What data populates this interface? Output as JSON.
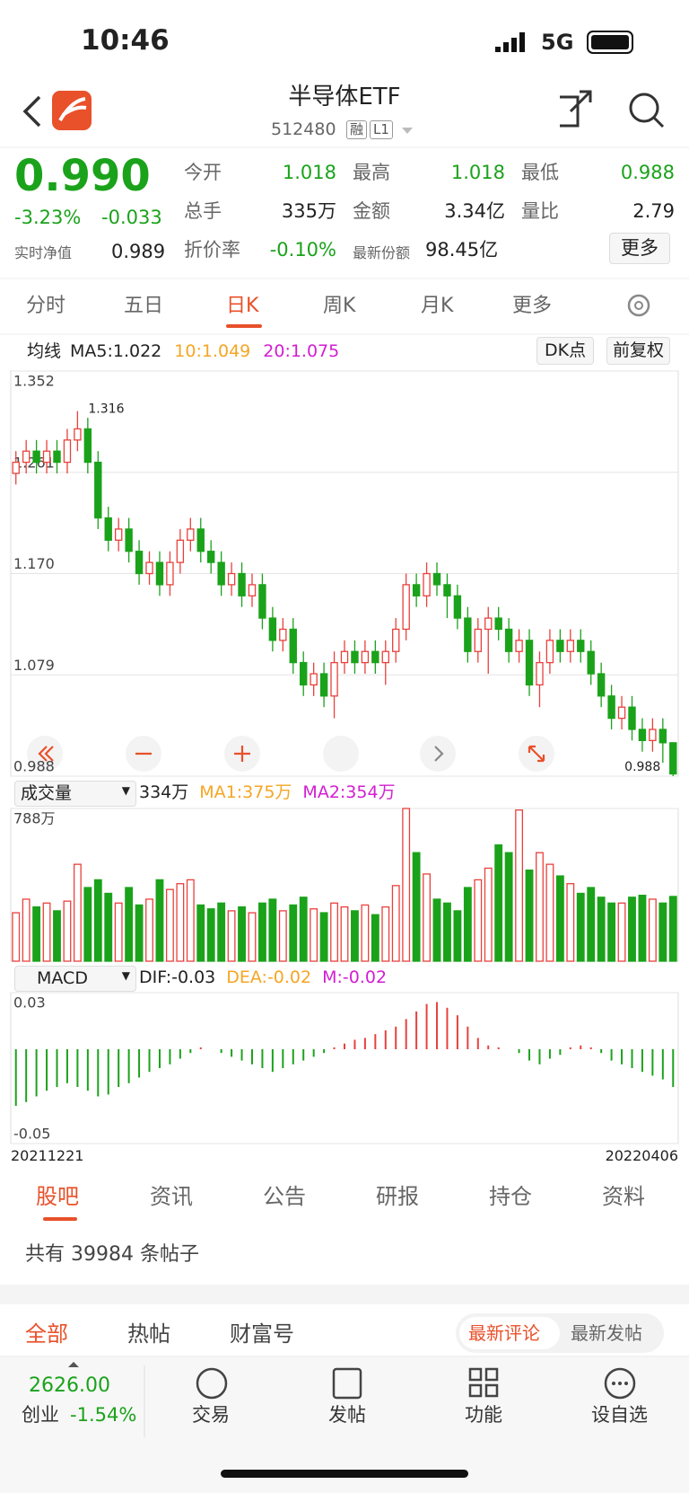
{
  "status_bar": {
    "time": "10:46",
    "network": "5G"
  },
  "header": {
    "title": "半导体ETF",
    "code": "512480",
    "tags": [
      "融",
      "L1"
    ]
  },
  "quote": {
    "price": "0.990",
    "change_pct": "-3.23%",
    "change": "-0.033",
    "nav_label": "实时净值",
    "nav": "0.989",
    "fields": [
      [
        "今开",
        "1.018"
      ],
      [
        "最高",
        "1.018"
      ],
      [
        "最低",
        "0.988"
      ],
      [
        "总手",
        "335万"
      ],
      [
        "金额",
        "3.34亿"
      ],
      [
        "量比",
        "2.79"
      ],
      [
        "折价率",
        "-0.10%"
      ],
      [
        "最新份额",
        "98.45亿"
      ]
    ],
    "more": "更多"
  },
  "period_tabs": [
    "分时",
    "五日",
    "日K",
    "周K",
    "月K",
    "更多"
  ],
  "ma_legend": {
    "label": "均线",
    "items": [
      {
        "label": "MA5:1.022",
        "color": "#222222"
      },
      {
        "label": "10:1.049",
        "color": "#f5a623"
      },
      {
        "label": "20:1.075",
        "color": "#d21ed2"
      }
    ],
    "buttons": [
      "DK点",
      "前复权"
    ]
  },
  "chart_data": [
    {
      "type": "candlestick",
      "up_color": "#e8413c",
      "down_color": "#1ba21b",
      "open": [
        1.26,
        1.27,
        1.28,
        1.27,
        1.28,
        1.27,
        1.29,
        1.3,
        1.27,
        1.22,
        1.2,
        1.21,
        1.19,
        1.17,
        1.18,
        1.16,
        1.18,
        1.2,
        1.21,
        1.19,
        1.18,
        1.16,
        1.17,
        1.15,
        1.16,
        1.13,
        1.11,
        1.12,
        1.09,
        1.07,
        1.08,
        1.06,
        1.09,
        1.1,
        1.09,
        1.1,
        1.09,
        1.1,
        1.12,
        1.16,
        1.15,
        1.17,
        1.16,
        1.15,
        1.13,
        1.1,
        1.12,
        1.13,
        1.12,
        1.1,
        1.11,
        1.07,
        1.09,
        1.11,
        1.1,
        1.11,
        1.1,
        1.08,
        1.06,
        1.04,
        1.05,
        1.03,
        1.02,
        1.03,
        1.018
      ],
      "high": [
        1.28,
        1.29,
        1.29,
        1.29,
        1.29,
        1.3,
        1.316,
        1.31,
        1.28,
        1.23,
        1.22,
        1.22,
        1.2,
        1.19,
        1.19,
        1.19,
        1.21,
        1.22,
        1.22,
        1.2,
        1.19,
        1.18,
        1.18,
        1.17,
        1.17,
        1.14,
        1.13,
        1.13,
        1.1,
        1.09,
        1.09,
        1.1,
        1.11,
        1.11,
        1.11,
        1.11,
        1.11,
        1.13,
        1.17,
        1.17,
        1.18,
        1.18,
        1.17,
        1.16,
        1.14,
        1.13,
        1.14,
        1.14,
        1.13,
        1.12,
        1.12,
        1.1,
        1.12,
        1.12,
        1.12,
        1.12,
        1.11,
        1.09,
        1.07,
        1.06,
        1.06,
        1.04,
        1.04,
        1.04,
        1.018
      ],
      "low": [
        1.25,
        1.26,
        1.26,
        1.26,
        1.26,
        1.26,
        1.28,
        1.26,
        1.21,
        1.19,
        1.19,
        1.18,
        1.16,
        1.16,
        1.15,
        1.15,
        1.17,
        1.19,
        1.18,
        1.17,
        1.15,
        1.15,
        1.14,
        1.14,
        1.12,
        1.1,
        1.1,
        1.08,
        1.06,
        1.06,
        1.05,
        1.04,
        1.08,
        1.08,
        1.08,
        1.08,
        1.07,
        1.09,
        1.11,
        1.14,
        1.14,
        1.15,
        1.13,
        1.12,
        1.09,
        1.09,
        1.08,
        1.11,
        1.09,
        1.09,
        1.06,
        1.05,
        1.08,
        1.09,
        1.09,
        1.09,
        1.07,
        1.05,
        1.03,
        1.03,
        1.02,
        1.01,
        1.01,
        1.0,
        0.988
      ],
      "close": [
        1.27,
        1.28,
        1.27,
        1.28,
        1.27,
        1.29,
        1.3,
        1.27,
        1.22,
        1.2,
        1.21,
        1.19,
        1.17,
        1.18,
        1.16,
        1.18,
        1.2,
        1.21,
        1.19,
        1.18,
        1.16,
        1.17,
        1.15,
        1.16,
        1.13,
        1.11,
        1.12,
        1.09,
        1.07,
        1.08,
        1.06,
        1.09,
        1.1,
        1.09,
        1.1,
        1.09,
        1.1,
        1.12,
        1.16,
        1.15,
        1.17,
        1.16,
        1.15,
        1.13,
        1.1,
        1.12,
        1.13,
        1.12,
        1.1,
        1.11,
        1.07,
        1.09,
        1.11,
        1.1,
        1.11,
        1.1,
        1.08,
        1.06,
        1.04,
        1.05,
        1.03,
        1.02,
        1.03,
        1.018,
        0.99
      ],
      "ylim": [
        0.988,
        1.352
      ],
      "yticks": [
        1.352,
        1.261,
        {
          "value": 1.17,
          "label": "1.170"
        },
        1.079,
        0.988
      ],
      "grid": true,
      "annotations": [
        1.316,
        0.988
      ]
    },
    {
      "type": "bar",
      "title": "成交量",
      "legend": [
        {
          "label": "334万",
          "color": "#222222"
        },
        {
          "label": "MA1:375万",
          "color": "#f5a623"
        },
        {
          "label": "MA2:354万",
          "color": "#d21ed2"
        }
      ],
      "values": [
        250,
        320,
        280,
        300,
        260,
        310,
        500,
        380,
        420,
        350,
        300,
        380,
        290,
        320,
        420,
        370,
        400,
        420,
        290,
        270,
        300,
        260,
        280,
        250,
        300,
        320,
        260,
        290,
        330,
        270,
        250,
        300,
        280,
        260,
        290,
        240,
        280,
        390,
        788,
        560,
        450,
        320,
        300,
        260,
        380,
        420,
        480,
        600,
        560,
        780,
        470,
        560,
        500,
        440,
        400,
        350,
        380,
        330,
        300,
        300,
        330,
        340,
        320,
        300,
        334
      ],
      "ylim": [
        0,
        788
      ],
      "yticks": [
        {
          "value": 788,
          "label": "788万"
        }
      ]
    },
    {
      "type": "macd",
      "title": "MACD",
      "legend": [
        {
          "label": "DIF:-0.03",
          "color": "#222222"
        },
        {
          "label": "DEA:-0.02",
          "color": "#f5a623"
        },
        {
          "label": "M:-0.02",
          "color": "#d21ed2"
        }
      ],
      "values": [
        -0.03,
        -0.028,
        -0.025,
        -0.022,
        -0.02,
        -0.018,
        -0.02,
        -0.022,
        -0.025,
        -0.024,
        -0.02,
        -0.018,
        -0.015,
        -0.012,
        -0.01,
        -0.008,
        -0.005,
        -0.002,
        0.001,
        0,
        -0.002,
        -0.004,
        -0.006,
        -0.008,
        -0.01,
        -0.012,
        -0.01,
        -0.008,
        -0.006,
        -0.004,
        -0.002,
        0.001,
        0.003,
        0.005,
        0.006,
        0.008,
        0.01,
        0.012,
        0.016,
        0.02,
        0.024,
        0.025,
        0.022,
        0.018,
        0.012,
        0.006,
        0.002,
        0.001,
        0,
        -0.002,
        -0.006,
        -0.008,
        -0.005,
        -0.003,
        0.001,
        0.002,
        0.001,
        -0.002,
        -0.006,
        -0.008,
        -0.01,
        -0.012,
        -0.014,
        -0.016,
        -0.02
      ],
      "ylim": [
        -0.05,
        0.03
      ],
      "yticks": [
        0.03,
        -0.05
      ],
      "x_labels": [
        "20211221",
        "20220406"
      ]
    }
  ],
  "info_tabs": [
    "股吧",
    "资讯",
    "公告",
    "研报",
    "持仓",
    "资料"
  ],
  "post_count": "共有 39984 条帖子",
  "post_tabs": [
    "全部",
    "热帖",
    "财富号"
  ],
  "sort_toggle": [
    "最新评论",
    "最新发帖"
  ],
  "index": {
    "value": "2626.00",
    "name": "创业",
    "change": "-1.54%"
  },
  "toolbar": [
    "交易",
    "发帖",
    "功能",
    "设自选"
  ]
}
